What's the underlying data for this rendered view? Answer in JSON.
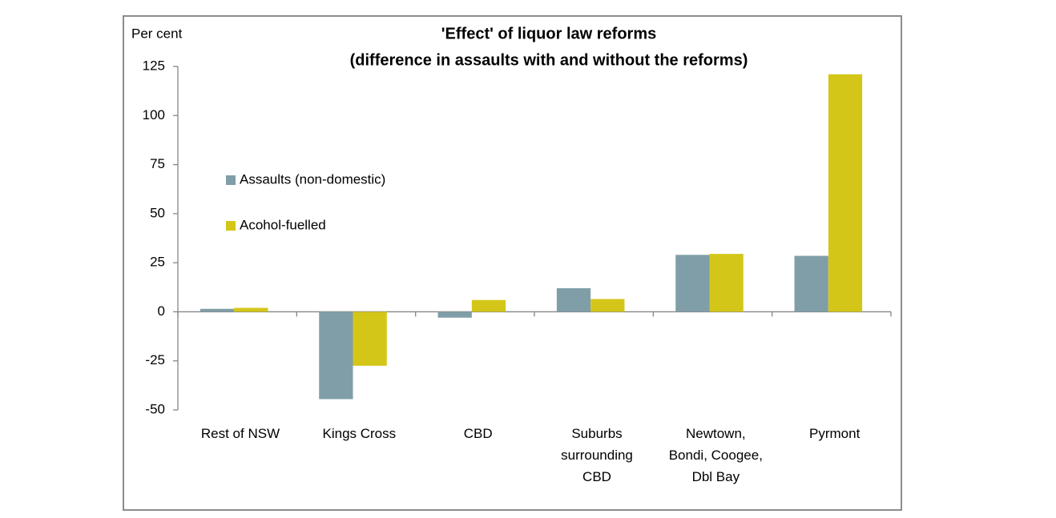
{
  "chart_data": {
    "type": "bar",
    "title": "'Effect' of liquor law reforms",
    "subtitle": "(difference in assaults with and without the reforms)",
    "y_label": "Per cent",
    "categories": [
      "Rest of NSW",
      "Kings Cross",
      "CBD",
      "Suburbs\nsurrounding\nCBD",
      "Newtown,\nBondi, Coogee,\nDbl Bay",
      "Pyrmont"
    ],
    "series": [
      {
        "name": "Assaults (non-domestic)",
        "color": "#7f9ea8",
        "values": [
          1.5,
          -44.5,
          -3,
          12,
          29,
          28.5
        ]
      },
      {
        "name": "Acohol-fuelled",
        "color": "#d4c619",
        "values": [
          2,
          -27.5,
          6,
          6.5,
          29.5,
          121
        ]
      }
    ],
    "ylim": [
      -50,
      125
    ],
    "yticks": [
      -50,
      -25,
      0,
      25,
      50,
      75,
      100,
      125
    ],
    "grid": false,
    "legend": "left"
  }
}
